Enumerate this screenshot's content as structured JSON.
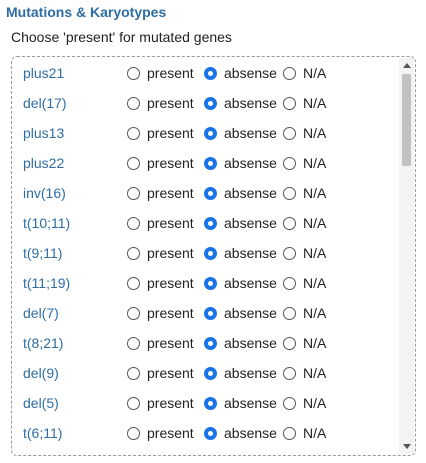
{
  "section": {
    "title": "Mutations & Karyotypes",
    "instruction": "Choose 'present' for mutated genes"
  },
  "options": {
    "present": "present",
    "absense": "absense",
    "na": "N/A"
  },
  "genes": [
    {
      "name": "plus21",
      "selected": "absense"
    },
    {
      "name": "del(17)",
      "selected": "absense"
    },
    {
      "name": "plus13",
      "selected": "absense"
    },
    {
      "name": "plus22",
      "selected": "absense"
    },
    {
      "name": "inv(16)",
      "selected": "absense"
    },
    {
      "name": "t(10;11)",
      "selected": "absense"
    },
    {
      "name": "t(9;11)",
      "selected": "absense"
    },
    {
      "name": "t(11;19)",
      "selected": "absense"
    },
    {
      "name": "del(7)",
      "selected": "absense"
    },
    {
      "name": "t(8;21)",
      "selected": "absense"
    },
    {
      "name": "del(9)",
      "selected": "absense"
    },
    {
      "name": "del(5)",
      "selected": "absense"
    },
    {
      "name": "t(6;11)",
      "selected": "absense"
    }
  ],
  "colors": {
    "title": "#2e6da4",
    "gene_label": "#2e6da4",
    "radio_checked": "#1a73e8"
  }
}
